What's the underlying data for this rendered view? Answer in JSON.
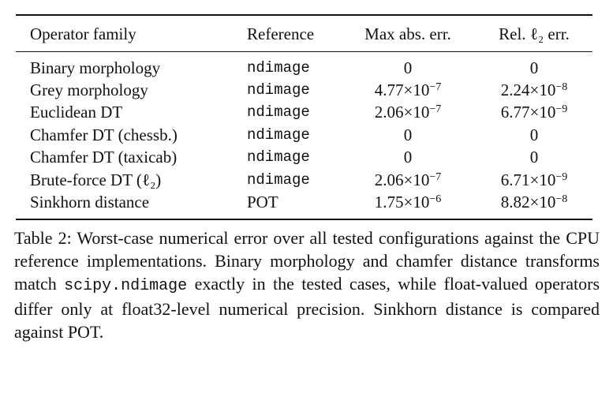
{
  "table": {
    "header": [
      "Operator family",
      "Reference",
      "Max abs. err.",
      "Rel. ℓ₂ err."
    ],
    "rows": [
      [
        "Binary morphology",
        "ndimage",
        "0",
        "0"
      ],
      [
        "Grey morphology",
        "ndimage",
        {
          "base": "4.77×10",
          "exp": "−7"
        },
        {
          "base": "2.24×10",
          "exp": "−8"
        }
      ],
      [
        "Euclidean DT",
        "ndimage",
        {
          "base": "2.06×10",
          "exp": "−7"
        },
        {
          "base": "6.77×10",
          "exp": "−9"
        }
      ],
      [
        "Chamfer DT (chessb.)",
        "ndimage",
        "0",
        "0"
      ],
      [
        "Chamfer DT (taxicab)",
        "ndimage",
        "0",
        "0"
      ],
      [
        "Brute-force DT (ℓ₂)",
        "ndimage",
        {
          "base": "2.06×10",
          "exp": "−7"
        },
        {
          "base": "6.71×10",
          "exp": "−9"
        }
      ],
      [
        "Sinkhorn distance",
        "POT",
        {
          "base": "1.75×10",
          "exp": "−6"
        },
        {
          "base": "8.82×10",
          "exp": "−8"
        }
      ]
    ]
  },
  "caption": {
    "label": "Table 2:",
    "text_before": "Worst-case numerical error over all tested configurations against the CPU reference implementations. Binary morphology and chamfer distance transforms match",
    "code": "scipy.ndimage",
    "text_after": "exactly in the tested cases, while float-valued operators differ only at float32-level numerical precision. Sinkhorn distance is compared against POT."
  }
}
